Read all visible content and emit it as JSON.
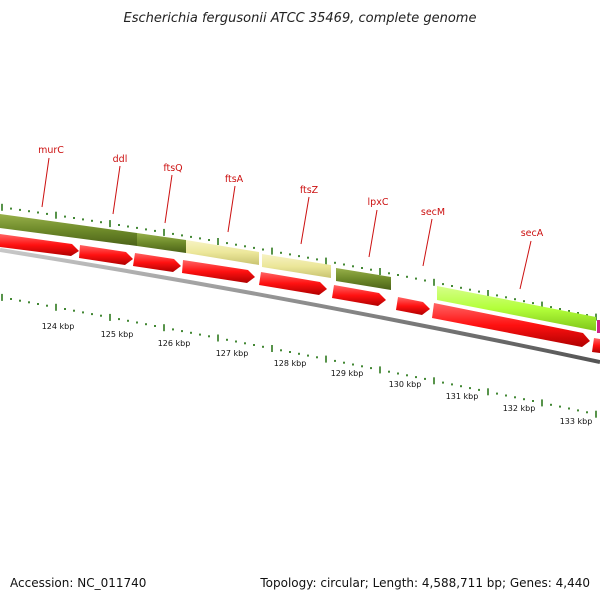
{
  "title": "Escherichia fergusonii ATCC 35469, complete genome",
  "footer": {
    "accession": "Accession: NC_011740",
    "summary": "Topology: circular; Length: 4,588,711 bp; Genes: 4,440"
  },
  "colors": {
    "cds_red": "#ff1111",
    "olive_green": "#6e8a2a",
    "khaki": "#ece79a",
    "lime": "#b3ff3a",
    "magenta": "#cc2288",
    "backbone": "#8a8a8a",
    "tick_green": "#2e7a1e",
    "label_red": "#cc1111"
  },
  "gene_labels": [
    {
      "name": "murC"
    },
    {
      "name": "ddl"
    },
    {
      "name": "ftsQ"
    },
    {
      "name": "ftsA"
    },
    {
      "name": "ftsZ"
    },
    {
      "name": "lpxC"
    },
    {
      "name": "secM"
    },
    {
      "name": "secA"
    }
  ],
  "kbp_labels": [
    "124 kbp",
    "125 kbp",
    "126 kbp",
    "127 kbp",
    "128 kbp",
    "129 kbp",
    "130 kbp",
    "131 kbp",
    "132 kbp",
    "133 kbp"
  ]
}
